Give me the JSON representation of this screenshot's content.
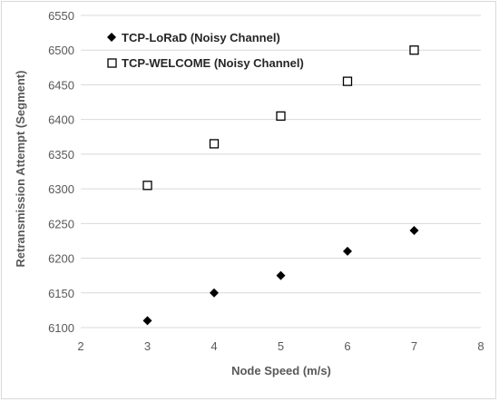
{
  "chart_data": {
    "type": "scatter",
    "title": "",
    "xlabel": "Node Speed (m/s)",
    "ylabel": "Retransmission Attempt (Segment)",
    "xlim": [
      2,
      8
    ],
    "ylim": [
      6100,
      6550
    ],
    "xticks": [
      "2",
      "3",
      "4",
      "5",
      "6",
      "7",
      "8"
    ],
    "yticks": [
      "6100",
      "6150",
      "6200",
      "6250",
      "6300",
      "6350",
      "6400",
      "6450",
      "6500",
      "6550"
    ],
    "grid": "horizontal",
    "legend_position": "top-left",
    "series": [
      {
        "name": "TCP-LoRaD (Noisy Channel)",
        "marker": "filled-diamond",
        "color": "#000000",
        "x": [
          3,
          4,
          5,
          6,
          7
        ],
        "y": [
          6110,
          6150,
          6175,
          6210,
          6240
        ]
      },
      {
        "name": "TCP-WELCOME (Noisy Channel)",
        "marker": "hollow-square",
        "color": "#000000",
        "x": [
          3,
          4,
          5,
          6,
          7
        ],
        "y": [
          6305,
          6365,
          6405,
          6455,
          6500
        ]
      }
    ]
  },
  "colors": {
    "gridline": "#d9d9d9",
    "axis_text": "#595959",
    "border": "#d9d9d9"
  }
}
